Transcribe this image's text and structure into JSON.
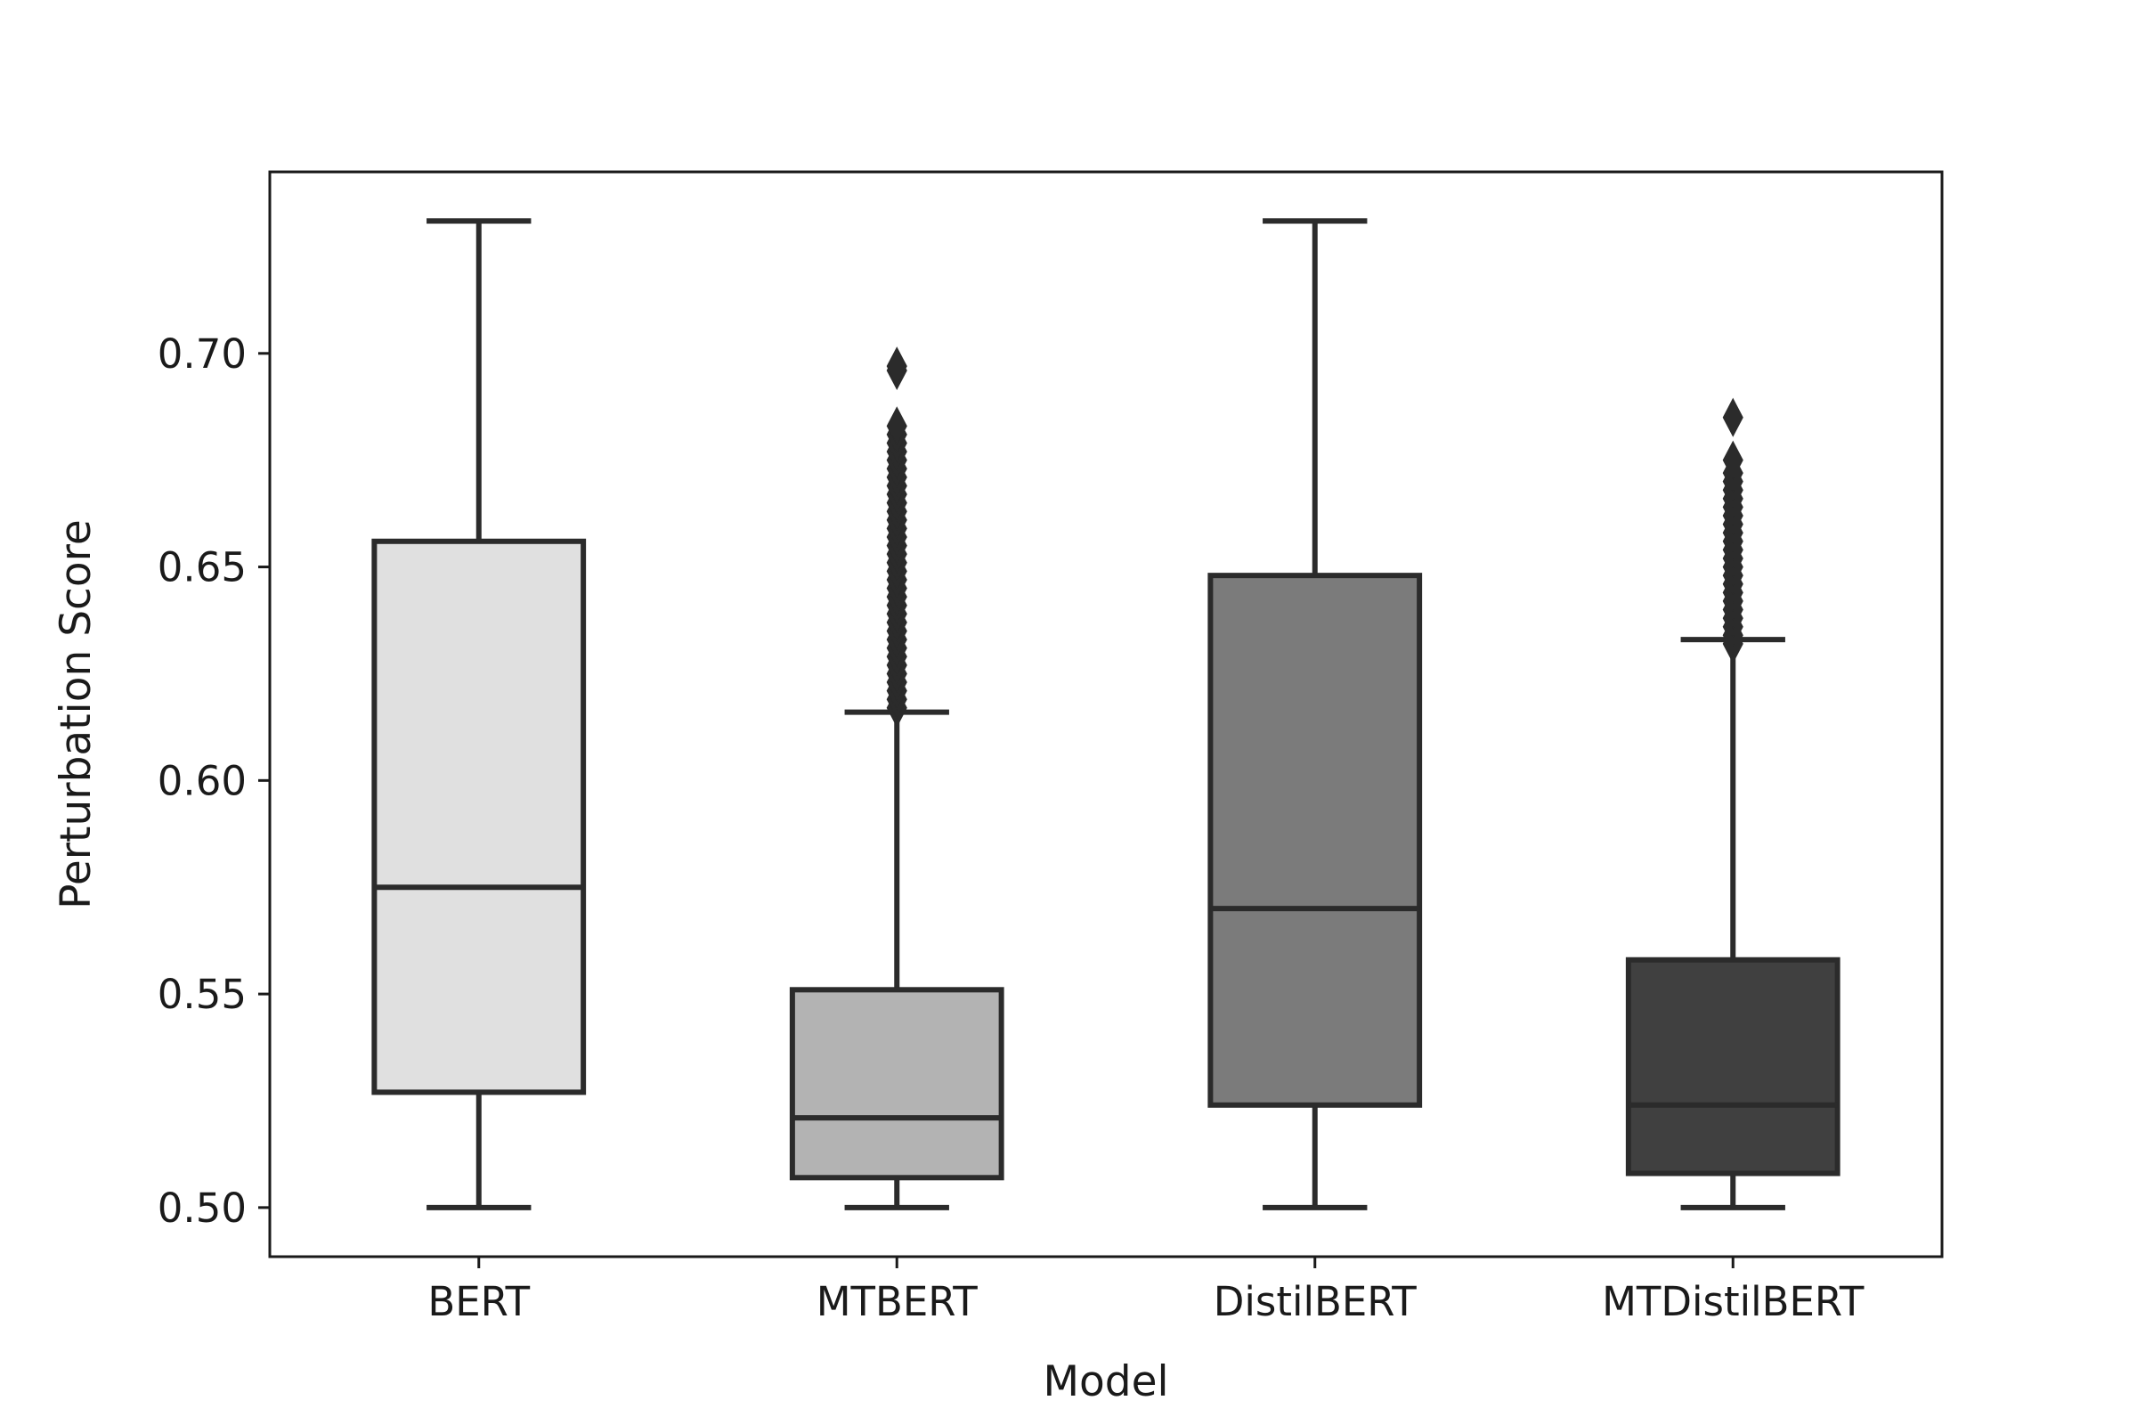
{
  "chart_data": {
    "type": "box",
    "title": "",
    "xlabel": "Model",
    "ylabel": "Perturbation Score",
    "ylim": [
      0.4885,
      0.7425
    ],
    "yticks": [
      "0.50",
      "0.55",
      "0.60",
      "0.65",
      "0.70"
    ],
    "ytick_values": [
      0.5,
      0.55,
      0.6,
      0.65,
      0.7
    ],
    "grid": false,
    "legend": "none",
    "categories": [
      "BERT",
      "MTBERT",
      "DistilBERT",
      "MTDistilBERT"
    ],
    "series": [
      {
        "category": "BERT",
        "whisker_low": 0.5,
        "q1": 0.527,
        "median": 0.575,
        "q3": 0.656,
        "whisker_high": 0.731,
        "fill": "#e0e0e0",
        "outliers": []
      },
      {
        "category": "MTBERT",
        "whisker_low": 0.5,
        "q1": 0.507,
        "median": 0.521,
        "q3": 0.551,
        "whisker_high": 0.616,
        "fill": "#b3b3b3",
        "outliers": [
          0.617,
          0.619,
          0.621,
          0.623,
          0.625,
          0.627,
          0.629,
          0.631,
          0.633,
          0.635,
          0.637,
          0.639,
          0.641,
          0.643,
          0.645,
          0.647,
          0.649,
          0.651,
          0.653,
          0.655,
          0.657,
          0.659,
          0.661,
          0.663,
          0.665,
          0.667,
          0.669,
          0.671,
          0.673,
          0.675,
          0.677,
          0.679,
          0.681,
          0.683,
          0.696,
          0.697
        ]
      },
      {
        "category": "DistilBERT",
        "whisker_low": 0.5,
        "q1": 0.524,
        "median": 0.57,
        "q3": 0.648,
        "whisker_high": 0.731,
        "fill": "#7b7b7b",
        "outliers": []
      },
      {
        "category": "MTDistilBERT",
        "whisker_low": 0.5,
        "q1": 0.508,
        "median": 0.524,
        "q3": 0.558,
        "whisker_high": 0.633,
        "fill": "#404040",
        "outliers": [
          0.632,
          0.634,
          0.636,
          0.638,
          0.64,
          0.642,
          0.644,
          0.646,
          0.648,
          0.65,
          0.652,
          0.654,
          0.656,
          0.658,
          0.66,
          0.662,
          0.664,
          0.666,
          0.668,
          0.67,
          0.672,
          0.675,
          0.685
        ]
      }
    ],
    "colors": {
      "edge": "#2b2b2b",
      "text": "#1a1a1a",
      "background": "#ffffff"
    }
  }
}
